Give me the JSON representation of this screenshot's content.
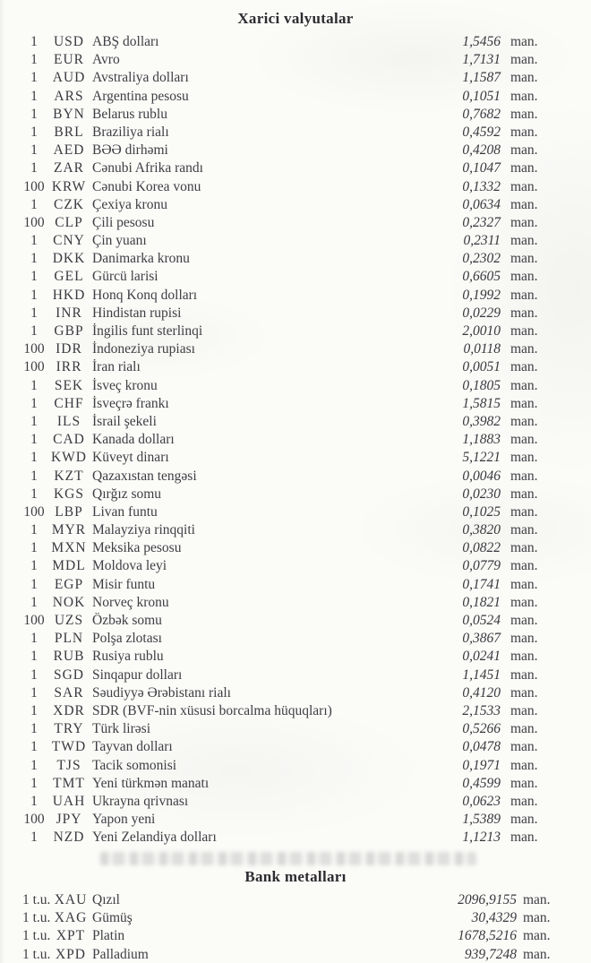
{
  "document": {
    "currencies_section": {
      "title": "Xarici valyutalar",
      "rows": [
        {
          "qty": "1",
          "code": "USD",
          "name": "ABŞ dolları",
          "rate": "1,5456",
          "unit": "man."
        },
        {
          "qty": "1",
          "code": "EUR",
          "name": "Avro",
          "rate": "1,7131",
          "unit": "man."
        },
        {
          "qty": "1",
          "code": "AUD",
          "name": "Avstraliya dolları",
          "rate": "1,1587",
          "unit": "man."
        },
        {
          "qty": "1",
          "code": "ARS",
          "name": "Argentina pesosu",
          "rate": "0,1051",
          "unit": "man."
        },
        {
          "qty": "1",
          "code": "BYN",
          "name": "Belarus rublu",
          "rate": "0,7682",
          "unit": "man."
        },
        {
          "qty": "1",
          "code": "BRL",
          "name": "Braziliya rialı",
          "rate": "0,4592",
          "unit": "man."
        },
        {
          "qty": "1",
          "code": "AED",
          "name": "BƏƏ dirhəmi",
          "rate": "0,4208",
          "unit": "man."
        },
        {
          "qty": "1",
          "code": "ZAR",
          "name": "Cənubi Afrika randı",
          "rate": "0,1047",
          "unit": "man."
        },
        {
          "qty": "100",
          "code": "KRW",
          "name": "Cənubi Korea vonu",
          "rate": "0,1332",
          "unit": "man."
        },
        {
          "qty": "1",
          "code": "CZK",
          "name": "Çexiya kronu",
          "rate": "0,0634",
          "unit": "man."
        },
        {
          "qty": "100",
          "code": "CLP",
          "name": "Çili pesosu",
          "rate": "0,2327",
          "unit": "man."
        },
        {
          "qty": "1",
          "code": "CNY",
          "name": "Çin yuanı",
          "rate": "0,2311",
          "unit": "man."
        },
        {
          "qty": "1",
          "code": "DKK",
          "name": "Danimarka kronu",
          "rate": "0,2302",
          "unit": "man."
        },
        {
          "qty": "1",
          "code": "GEL",
          "name": "Gürcü larisi",
          "rate": "0,6605",
          "unit": "man."
        },
        {
          "qty": "1",
          "code": "HKD",
          "name": "Honq Konq dolları",
          "rate": "0,1992",
          "unit": "man."
        },
        {
          "qty": "1",
          "code": "INR",
          "name": "Hindistan rupisi",
          "rate": "0,0229",
          "unit": "man."
        },
        {
          "qty": "1",
          "code": "GBP",
          "name": "İngilis funt sterlinqi",
          "rate": "2,0010",
          "unit": "man."
        },
        {
          "qty": "100",
          "code": "IDR",
          "name": "İndoneziya rupiası",
          "rate": "0,0118",
          "unit": "man."
        },
        {
          "qty": "100",
          "code": "IRR",
          "name": "İran rialı",
          "rate": "0,0051",
          "unit": "man."
        },
        {
          "qty": "1",
          "code": "SEK",
          "name": "İsveç kronu",
          "rate": "0,1805",
          "unit": "man."
        },
        {
          "qty": "1",
          "code": "CHF",
          "name": "İsveçrə frankı",
          "rate": "1,5815",
          "unit": "man."
        },
        {
          "qty": "1",
          "code": "ILS",
          "name": "İsrail şekeli",
          "rate": "0,3982",
          "unit": "man."
        },
        {
          "qty": "1",
          "code": "CAD",
          "name": "Kanada dolları",
          "rate": "1,1883",
          "unit": "man."
        },
        {
          "qty": "1",
          "code": "KWD",
          "name": "Küveyt dinarı",
          "rate": "5,1221",
          "unit": "man."
        },
        {
          "qty": "1",
          "code": "KZT",
          "name": "Qazaxıstan tengəsi",
          "rate": "0,0046",
          "unit": "man."
        },
        {
          "qty": "1",
          "code": "KGS",
          "name": "Qırğız somu",
          "rate": "0,0230",
          "unit": "man."
        },
        {
          "qty": "100",
          "code": "LBP",
          "name": "Livan funtu",
          "rate": "0,1025",
          "unit": "man."
        },
        {
          "qty": "1",
          "code": "MYR",
          "name": "Malayziya rinqqiti",
          "rate": "0,3820",
          "unit": "man."
        },
        {
          "qty": "1",
          "code": "MXN",
          "name": "Meksika pesosu",
          "rate": "0,0822",
          "unit": "man."
        },
        {
          "qty": "1",
          "code": "MDL",
          "name": "Moldova leyi",
          "rate": "0,0779",
          "unit": "man."
        },
        {
          "qty": "1",
          "code": "EGP",
          "name": "Misir funtu",
          "rate": "0,1741",
          "unit": "man."
        },
        {
          "qty": "1",
          "code": "NOK",
          "name": "Norveç kronu",
          "rate": "0,1821",
          "unit": "man."
        },
        {
          "qty": "100",
          "code": "UZS",
          "name": "Özbək somu",
          "rate": "0,0524",
          "unit": "man."
        },
        {
          "qty": "1",
          "code": "PLN",
          "name": "Polşa zlotası",
          "rate": "0,3867",
          "unit": "man."
        },
        {
          "qty": "1",
          "code": "RUB",
          "name": "Rusiya rublu",
          "rate": "0,0241",
          "unit": "man."
        },
        {
          "qty": "1",
          "code": "SGD",
          "name": "Sinqapur dolları",
          "rate": "1,1451",
          "unit": "man."
        },
        {
          "qty": "1",
          "code": "SAR",
          "name": "Səudiyyə Ərəbistanı rialı",
          "rate": "0,4120",
          "unit": "man."
        },
        {
          "qty": "1",
          "code": "XDR",
          "name": "SDR (BVF-nin xüsusi borcalma hüquqları)",
          "rate": "2,1533",
          "unit": "man."
        },
        {
          "qty": "1",
          "code": "TRY",
          "name": "Türk lirəsi",
          "rate": "0,5266",
          "unit": "man."
        },
        {
          "qty": "1",
          "code": "TWD",
          "name": "Tayvan dolları",
          "rate": "0,0478",
          "unit": "man."
        },
        {
          "qty": "1",
          "code": "TJS",
          "name": "Tacik somonisi",
          "rate": "0,1971",
          "unit": "man."
        },
        {
          "qty": "1",
          "code": "TMT",
          "name": "Yeni türkmən manatı",
          "rate": "0,4599",
          "unit": "man."
        },
        {
          "qty": "1",
          "code": "UAH",
          "name": "Ukrayna qrivnası",
          "rate": "0,0623",
          "unit": "man."
        },
        {
          "qty": "100",
          "code": "JPY",
          "name": "Yapon yeni",
          "rate": "1,5389",
          "unit": "man."
        },
        {
          "qty": "1",
          "code": "NZD",
          "name": "Yeni Zelandiya dolları",
          "rate": "1,1213",
          "unit": "man."
        }
      ]
    },
    "metals_section": {
      "title": "Bank metalları",
      "rows": [
        {
          "qty": "1 t.u.",
          "code": "XAU",
          "name": "Qızıl",
          "rate": "2096,9155",
          "unit": "man."
        },
        {
          "qty": "1 t.u.",
          "code": "XAG",
          "name": "Gümüş",
          "rate": "30,4329",
          "unit": "man."
        },
        {
          "qty": "1 t.u.",
          "code": "XPT",
          "name": "Platin",
          "rate": "1678,5216",
          "unit": "man."
        },
        {
          "qty": "1 t.u.",
          "code": "XPD",
          "name": "Palladium",
          "rate": "939,7248",
          "unit": "man."
        }
      ]
    }
  }
}
